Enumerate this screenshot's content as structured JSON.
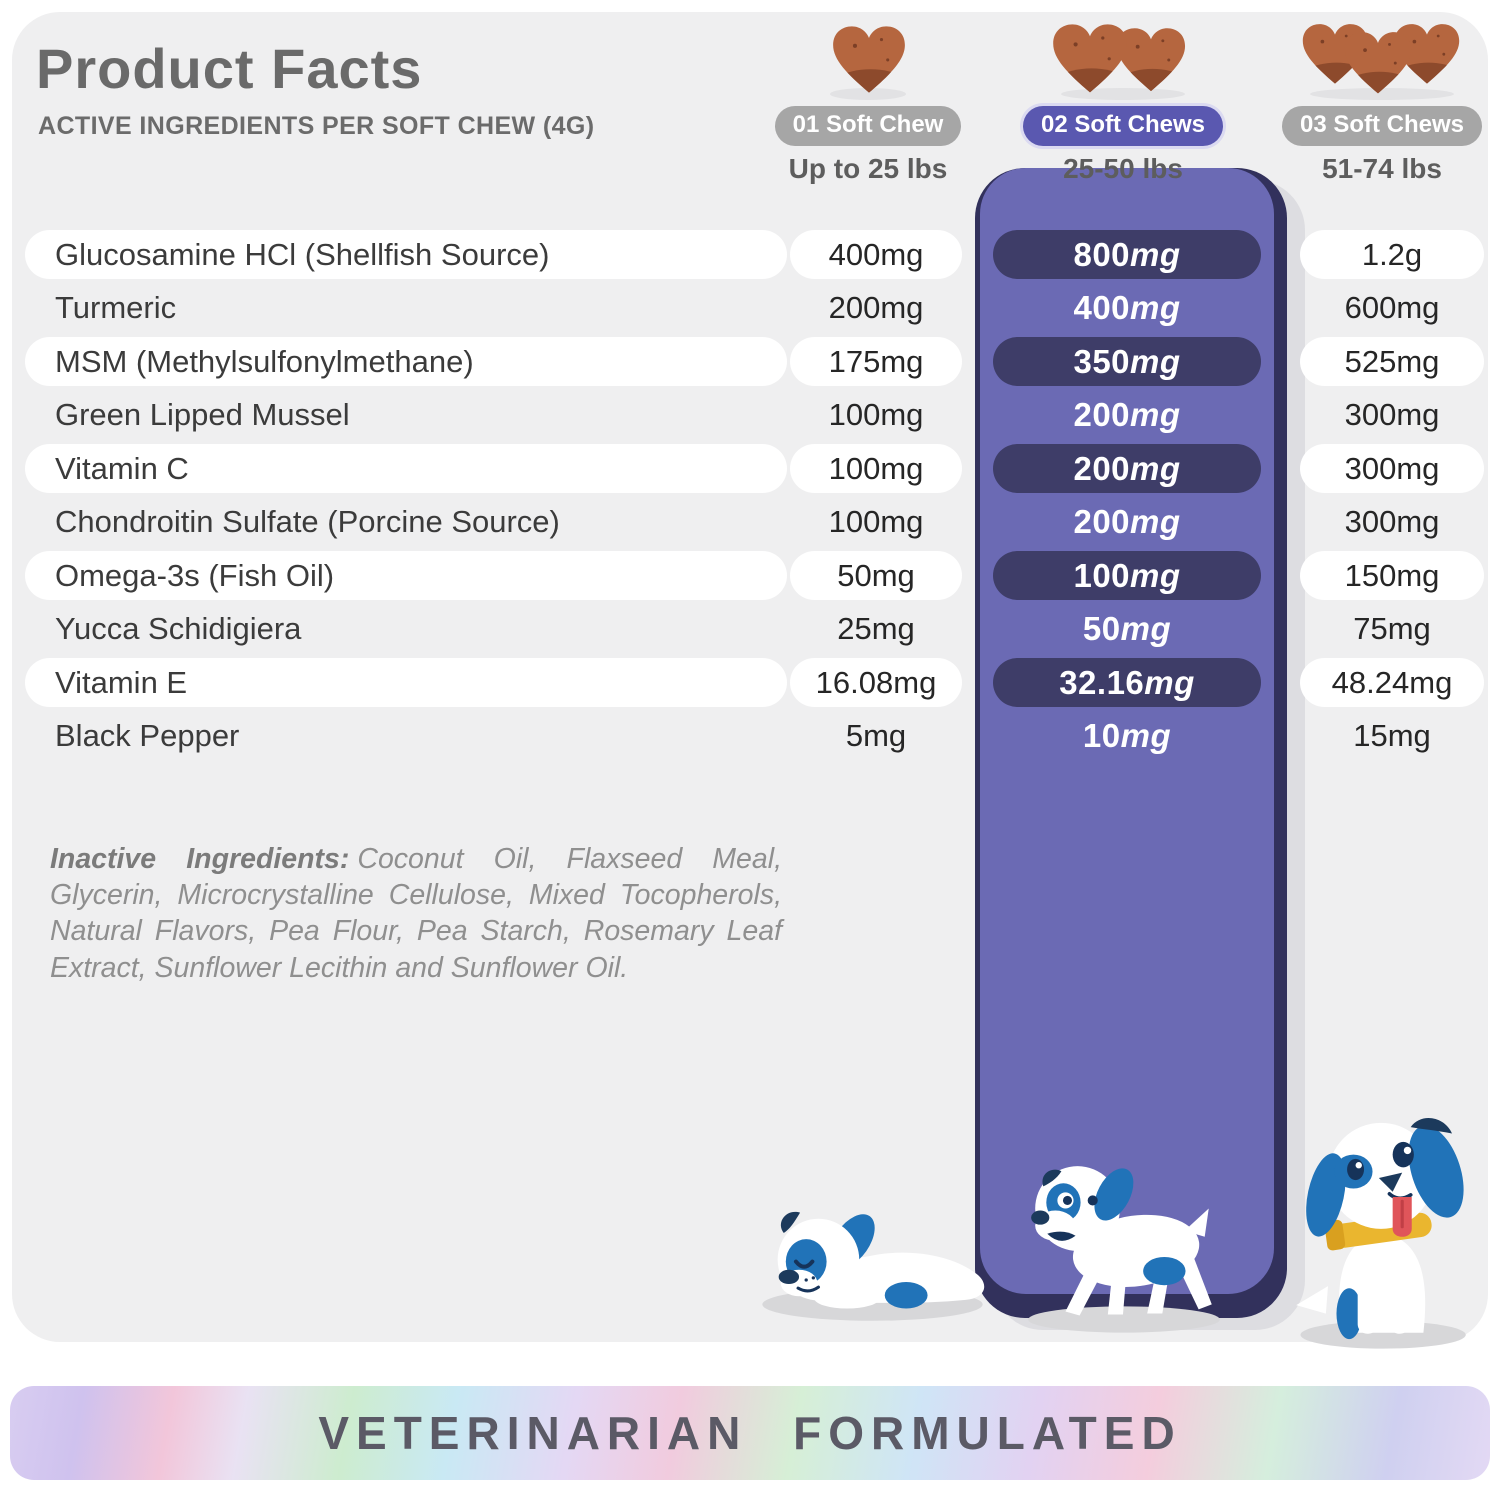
{
  "header": {
    "title": "Product Facts",
    "subtitle": "ACTIVE INGREDIENTS PER SOFT CHEW (4G)"
  },
  "columns": [
    {
      "pill": "01 Soft Chew",
      "weight": "Up to 25 lbs",
      "chews": 1,
      "highlight": false
    },
    {
      "pill": "02 Soft Chews",
      "weight": "25-50 lbs",
      "chews": 2,
      "highlight": true
    },
    {
      "pill": "03 Soft Chews",
      "weight": "51-74 lbs",
      "chews": 3,
      "highlight": false
    }
  ],
  "table": {
    "rows": [
      {
        "name": "Glucosamine HCl (Shellfish Source)",
        "col1": "400mg",
        "col2": "800mg",
        "col3": "1.2g"
      },
      {
        "name": "Turmeric",
        "col1": "200mg",
        "col2": "400mg",
        "col3": "600mg"
      },
      {
        "name": "MSM (Methylsulfonylmethane)",
        "col1": "175mg",
        "col2": "350mg",
        "col3": "525mg"
      },
      {
        "name": "Green Lipped Mussel",
        "col1": "100mg",
        "col2": "200mg",
        "col3": "300mg"
      },
      {
        "name": "Vitamin C",
        "col1": "100mg",
        "col2": "200mg",
        "col3": "300mg"
      },
      {
        "name": "Chondroitin Sulfate (Porcine Source)",
        "col1": "100mg",
        "col2": "200mg",
        "col3": "300mg"
      },
      {
        "name": "Omega-3s (Fish Oil)",
        "col1": "50mg",
        "col2": "100mg",
        "col3": "150mg"
      },
      {
        "name": "Yucca Schidigiera",
        "col1": "25mg",
        "col2": "50mg",
        "col3": "75mg"
      },
      {
        "name": "Vitamin E",
        "col1": "16.08mg",
        "col2": "32.16mg",
        "col3": "48.24mg"
      },
      {
        "name": "Black Pepper",
        "col1": "5mg",
        "col2": "10mg",
        "col3": "15mg"
      }
    ]
  },
  "inactive": {
    "label": "Inactive Ingredients:",
    "text": "Coconut Oil, Flaxseed Meal, Glycerin, Microcrystalline Cellulose, Mixed Tocopherols, Natural Flavors, Pea Flour, Pea Starch, Rosemary Leaf Extract, Sunflower Lecithin and Sunflower Oil."
  },
  "footer": {
    "banner": "VETERINARIAN FORMULATED"
  },
  "icons": {
    "chew": "soft-chew-heart-icon",
    "dog_small": "sleeping-puppy-illustration",
    "dog_medium": "walking-dog-illustration",
    "dog_large": "sitting-dog-illustration"
  },
  "colors": {
    "card_bg": "#efeff0",
    "column_purple": "#6b6ab4",
    "column_navy": "#32315c",
    "value_pill_navy": "#3e3d68",
    "pill_gray": "#a6a6a6",
    "pill_purple": "#5a58b0",
    "chew_brown": "#b5663f",
    "chew_brown_dark": "#8d4a2c",
    "dog_blue": "#2173b8",
    "collar_yellow": "#eab62f",
    "tongue_red": "#e0555a",
    "banner_text": "#5b5a66"
  }
}
